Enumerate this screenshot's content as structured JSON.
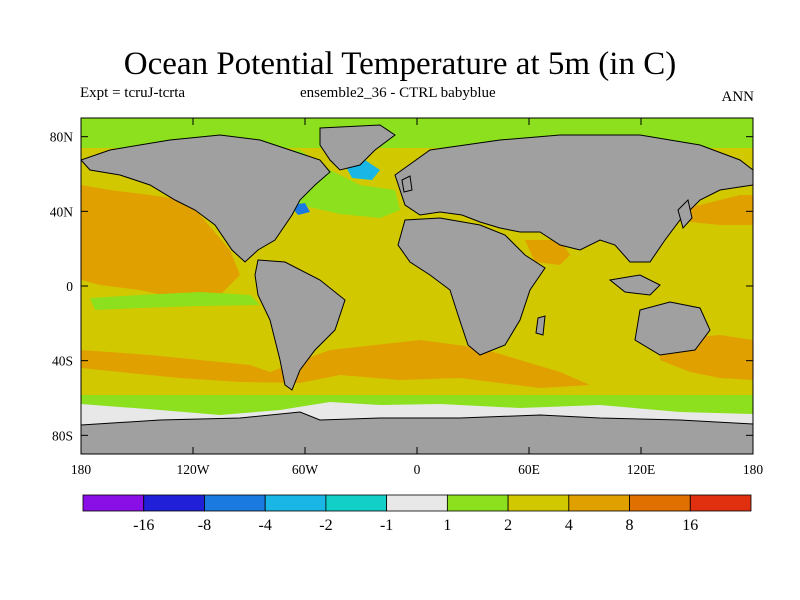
{
  "title": "Ocean Potential Temperature at 5m (in C)",
  "subtitle_left": "Expt = tcruJ-tcrta",
  "subtitle_center": "ensemble2_36 - CTRL babyblue",
  "subtitle_right": "ANN",
  "map": {
    "projection": "cylindrical-equidistant",
    "lon_range": [
      -180,
      180
    ],
    "lat_range": [
      -90,
      90
    ],
    "land_color": "#a0a0a0",
    "lat_tick_labels": [
      "80N",
      "40N",
      "0",
      "40S",
      "80S"
    ],
    "lat_tick_values": [
      80,
      40,
      0,
      -40,
      -80
    ],
    "lon_tick_labels": [
      "180",
      "120W",
      "60W",
      "0",
      "60E",
      "120E",
      "180"
    ],
    "lon_tick_values": [
      -180,
      -120,
      -60,
      0,
      60,
      120,
      180
    ]
  },
  "colorbar": {
    "colors": [
      "#8a0fe6",
      "#2020d8",
      "#1a7ae0",
      "#19b6e6",
      "#12d0c8",
      "#e8e8e8",
      "#8ce01e",
      "#d2c800",
      "#e0a000",
      "#e07000",
      "#e03010"
    ],
    "labels": [
      "-16",
      "-8",
      "-4",
      "-2",
      "-1",
      "1",
      "2",
      "4",
      "8",
      "16"
    ]
  }
}
